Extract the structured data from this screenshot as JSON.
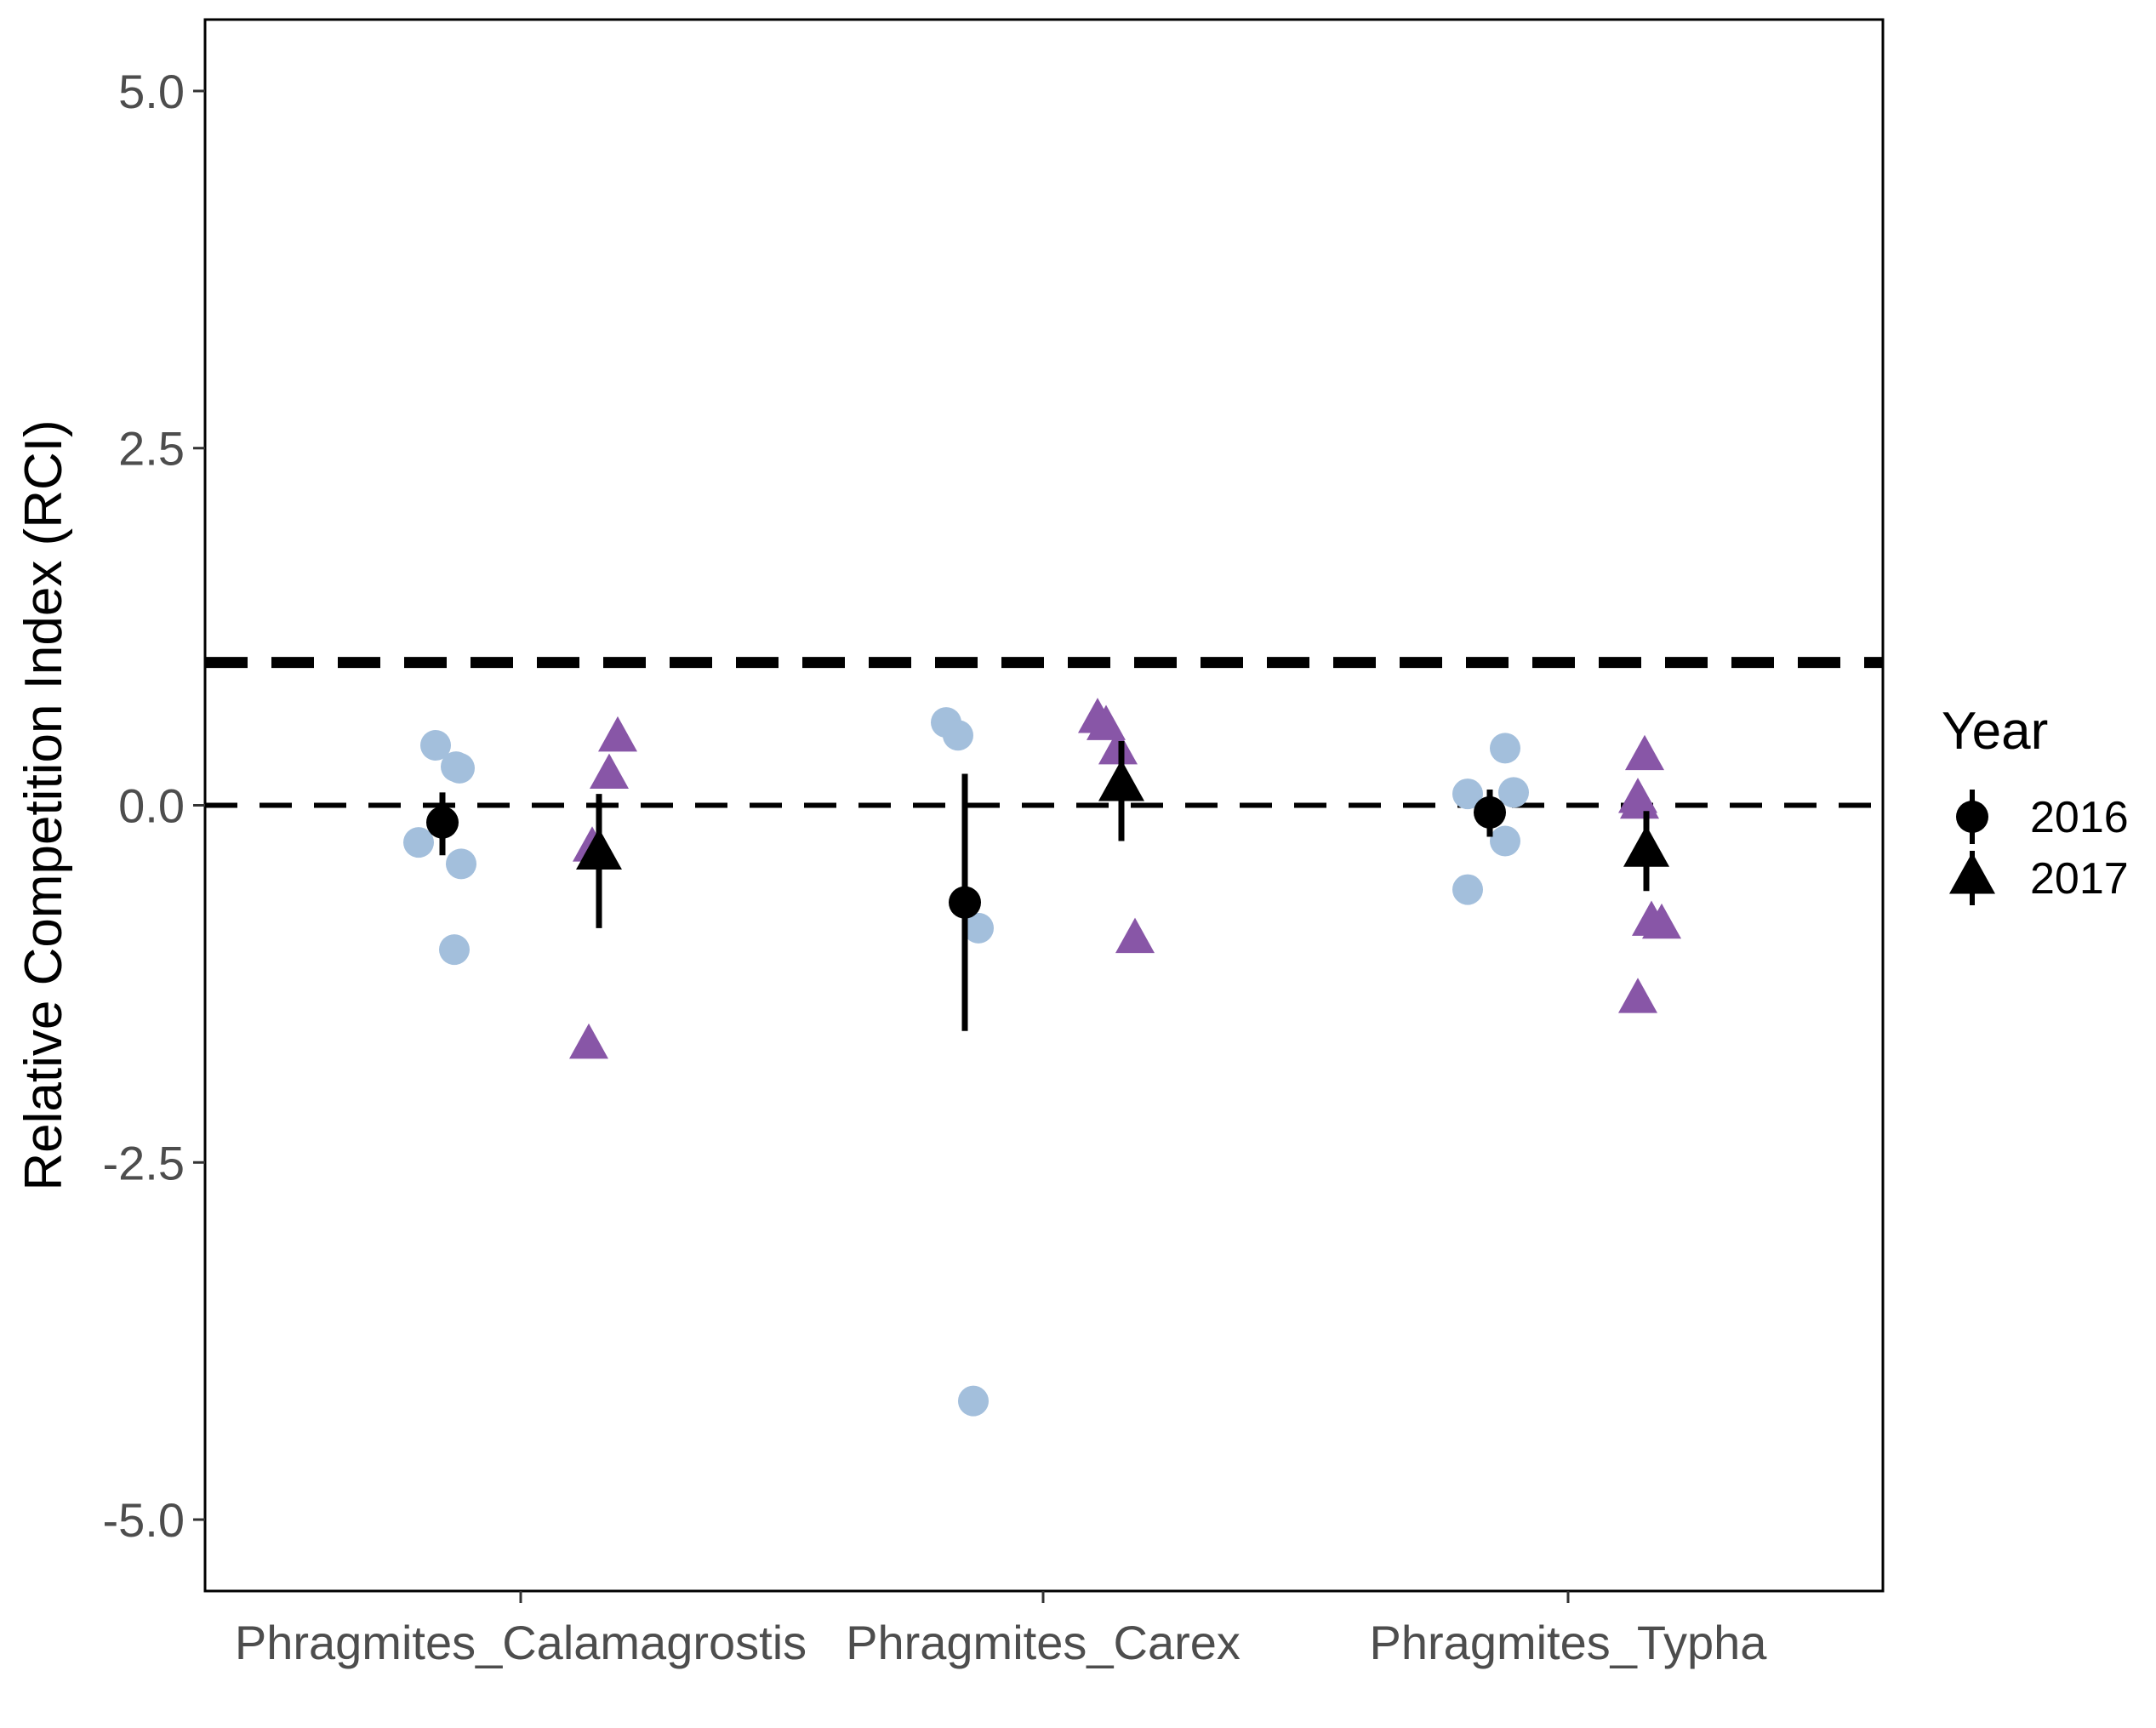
{
  "chart_data": {
    "type": "scatter",
    "ylabel": "Relative Competition Index (RCI)",
    "xlabel": "",
    "ylim": [
      -5.5,
      5.5
    ],
    "yticks": [
      "5.0",
      "2.5",
      "0.0",
      "-2.5",
      "-5.0"
    ],
    "ytick_values": [
      5.0,
      2.5,
      0.0,
      -2.5,
      -5.0
    ],
    "categories": [
      "Phragmites_Calamagrostis",
      "Phragmites_Carex",
      "Phragmites_Typha"
    ],
    "reference_lines": [
      {
        "y": 1.0,
        "style": "long-dash",
        "weight": "thick"
      },
      {
        "y": 0.0,
        "style": "dash",
        "weight": "normal"
      }
    ],
    "legend": {
      "title": "Year",
      "placement": "right",
      "entries": [
        {
          "label": "2016",
          "shape": "circle"
        },
        {
          "label": "2017",
          "shape": "triangle"
        }
      ]
    },
    "colors": {
      "2016_points": "#a3bfdc",
      "2017_points": "#8856a7",
      "summary": "#000000",
      "frame": "#000000"
    },
    "series": [
      {
        "year": "2016",
        "shape": "circle",
        "raw_points": [
          {
            "category": "Phragmites_Calamagrostis",
            "y": 0.42
          },
          {
            "category": "Phragmites_Calamagrostis",
            "y": 0.27
          },
          {
            "category": "Phragmites_Calamagrostis",
            "y": 0.26
          },
          {
            "category": "Phragmites_Calamagrostis",
            "y": -0.26
          },
          {
            "category": "Phragmites_Calamagrostis",
            "y": -0.41
          },
          {
            "category": "Phragmites_Calamagrostis",
            "y": -1.01
          },
          {
            "category": "Phragmites_Carex",
            "y": 0.58
          },
          {
            "category": "Phragmites_Carex",
            "y": 0.49
          },
          {
            "category": "Phragmites_Carex",
            "y": -0.86
          },
          {
            "category": "Phragmites_Carex",
            "y": -4.17
          },
          {
            "category": "Phragmites_Typha",
            "y": 0.4
          },
          {
            "category": "Phragmites_Typha",
            "y": 0.08
          },
          {
            "category": "Phragmites_Typha",
            "y": 0.09
          },
          {
            "category": "Phragmites_Typha",
            "y": -0.25
          },
          {
            "category": "Phragmites_Typha",
            "y": -0.59
          }
        ],
        "summary": [
          {
            "category": "Phragmites_Calamagrostis",
            "mean": -0.12,
            "lower": -0.35,
            "upper": 0.09
          },
          {
            "category": "Phragmites_Carex",
            "mean": -0.68,
            "lower": -1.58,
            "upper": 0.22
          },
          {
            "category": "Phragmites_Typha",
            "mean": -0.05,
            "lower": -0.22,
            "upper": 0.11
          }
        ]
      },
      {
        "year": "2017",
        "shape": "triangle",
        "raw_points": [
          {
            "category": "Phragmites_Calamagrostis",
            "y": 0.47
          },
          {
            "category": "Phragmites_Calamagrostis",
            "y": 0.21
          },
          {
            "category": "Phragmites_Calamagrostis",
            "y": -0.3
          },
          {
            "category": "Phragmites_Calamagrostis",
            "y": -1.68
          },
          {
            "category": "Phragmites_Carex",
            "y": 0.6
          },
          {
            "category": "Phragmites_Carex",
            "y": 0.55
          },
          {
            "category": "Phragmites_Carex",
            "y": 0.38
          },
          {
            "category": "Phragmites_Carex",
            "y": -0.94
          },
          {
            "category": "Phragmites_Typha",
            "y": 0.34
          },
          {
            "category": "Phragmites_Typha",
            "y": 0.04
          },
          {
            "category": "Phragmites_Typha",
            "y": 0.0
          },
          {
            "category": "Phragmites_Typha",
            "y": -0.82
          },
          {
            "category": "Phragmites_Typha",
            "y": -0.84
          },
          {
            "category": "Phragmites_Typha",
            "y": -1.36
          }
        ],
        "summary": [
          {
            "category": "Phragmites_Calamagrostis",
            "mean": -0.34,
            "lower": -0.86,
            "upper": 0.08
          },
          {
            "category": "Phragmites_Carex",
            "mean": 0.14,
            "lower": -0.25,
            "upper": 0.45
          },
          {
            "category": "Phragmites_Typha",
            "mean": -0.32,
            "lower": -0.6,
            "upper": -0.04
          }
        ]
      }
    ]
  }
}
